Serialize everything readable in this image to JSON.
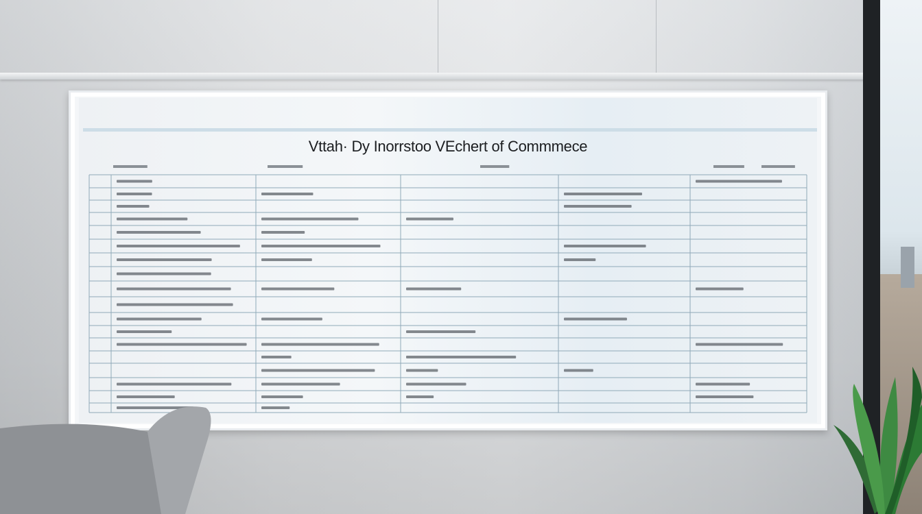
{
  "whiteboard": {
    "title": "Vttah· Dy Inorrstoo VEchert of Commmece",
    "colors": {
      "board": "#f4f6f8",
      "grid_line": "#8fa9b8",
      "text": "#1b1d20",
      "wall": "#dfe1e3"
    }
  },
  "scene": {
    "objects": [
      "wall",
      "ceiling-rail",
      "whiteboard",
      "chair",
      "plant",
      "window"
    ]
  }
}
